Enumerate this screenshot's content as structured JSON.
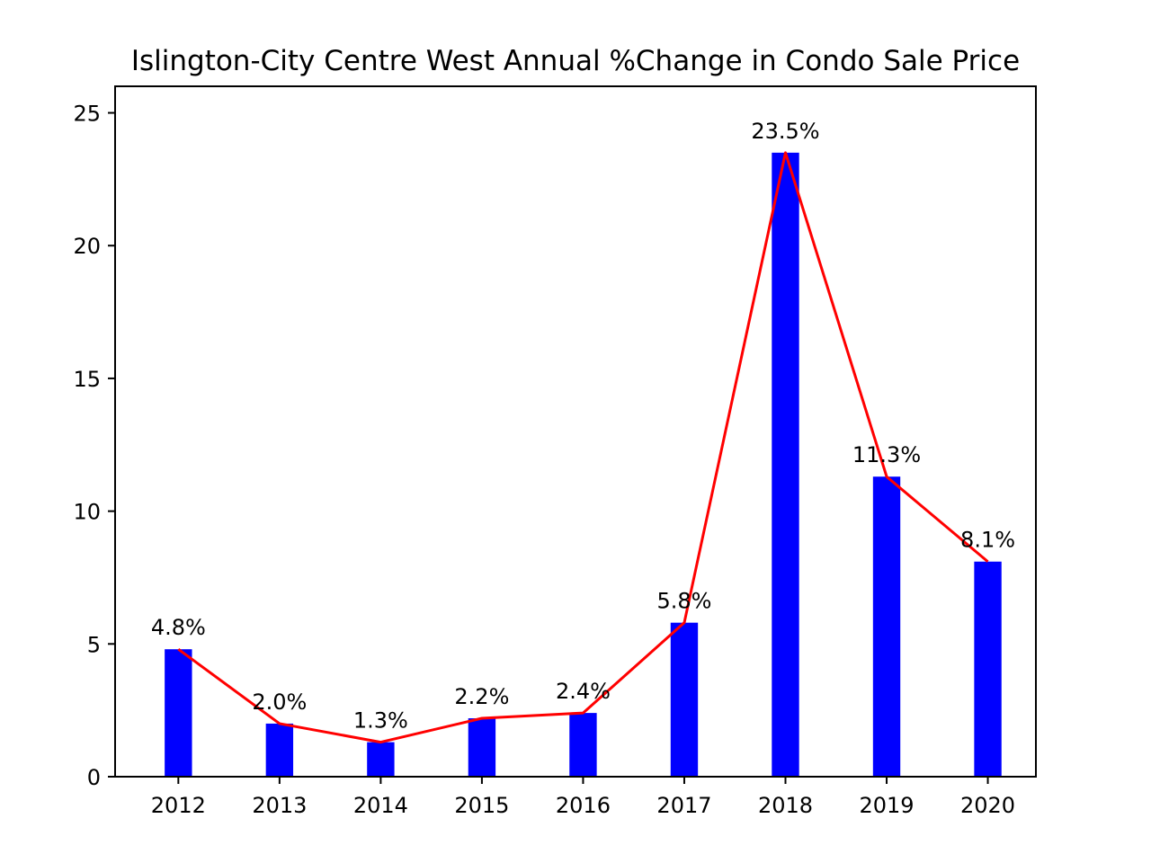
{
  "chart_data": {
    "type": "bar",
    "title": "Islington-City Centre West Annual %Change in Condo Sale Price",
    "xlabel": "",
    "ylabel": "",
    "categories": [
      "2012",
      "2013",
      "2014",
      "2015",
      "2016",
      "2017",
      "2018",
      "2019",
      "2020"
    ],
    "values": [
      4.8,
      2.0,
      1.3,
      2.2,
      2.4,
      5.8,
      23.5,
      11.3,
      8.1
    ],
    "data_labels": [
      "4.8%",
      "2.0%",
      "1.3%",
      "2.2%",
      "2.4%",
      "5.8%",
      "23.5%",
      "11.3%",
      "8.1%"
    ],
    "ylim": [
      0,
      26
    ],
    "yticks": [
      "0",
      "5",
      "10",
      "15",
      "20",
      "25"
    ],
    "overlay_line": {
      "values": [
        4.8,
        2.0,
        1.3,
        2.2,
        2.4,
        5.8,
        23.5,
        11.3,
        8.1
      ]
    },
    "colors": {
      "bar": "#0000ff",
      "line": "#ff0000"
    },
    "grid": false,
    "legend": "none"
  }
}
